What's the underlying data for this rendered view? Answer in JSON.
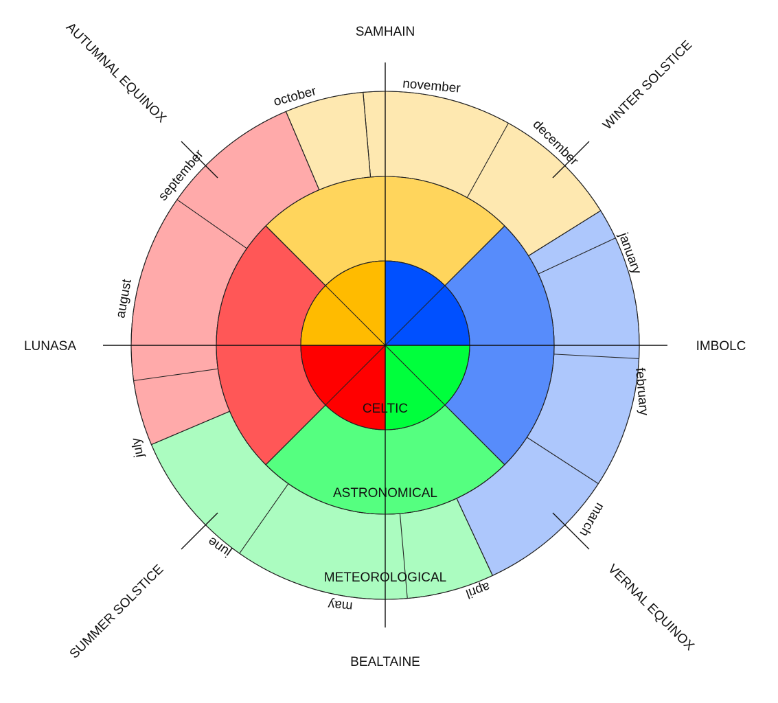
{
  "colors": {
    "autumn": {
      "celtic": "#ffbb00",
      "astronomical": "#ffd55c",
      "meteorological": "#fee8b0"
    },
    "winter": {
      "celtic": "#0050ff",
      "astronomical": "#578cfb",
      "meteorological": "#adc7fc"
    },
    "spring": {
      "celtic": "#00ff3c",
      "astronomical": "#55ff80",
      "meteorological": "#abfcc0"
    },
    "summer": {
      "celtic": "#ff0000",
      "astronomical": "#ff5757",
      "meteorological": "#ffaaaa"
    }
  },
  "rings": {
    "celtic": "CELTIC",
    "astronomical": "ASTRONOMICAL",
    "meteorological": "METEOROLOGICAL"
  },
  "festivals": {
    "samhain": "SAMHAIN",
    "imbolc": "IMBOLC",
    "bealtaine": "BEALTAINE",
    "lunasa": "LUNASA",
    "winter_solstice": "WINTER SOLSTICE",
    "vernal_equinox": "VERNAL EQUINOX",
    "summer_solstice": "SUMMER SOLSTICE",
    "autumnal_equinox": "AUTUMNAL EQUINOX"
  },
  "months": {
    "november": "november",
    "december": "december",
    "january": "january",
    "february": "february",
    "march": "march",
    "april": "april",
    "may": "may",
    "june": "june",
    "july": "july",
    "august": "august",
    "september": "september",
    "october": "october"
  }
}
